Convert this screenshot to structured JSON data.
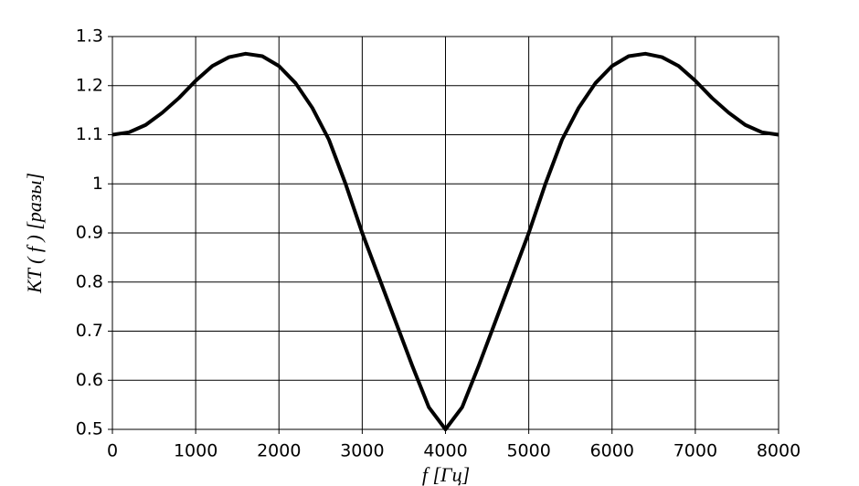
{
  "chart_data": {
    "type": "line",
    "x_label": "f [Гц]",
    "y_label": "KT ( f ) [разы]",
    "x": [
      0,
      200,
      400,
      600,
      800,
      1000,
      1200,
      1400,
      1600,
      1800,
      2000,
      2200,
      2400,
      2600,
      2800,
      3000,
      3200,
      3400,
      3600,
      3800,
      4000,
      4200,
      4400,
      4600,
      4800,
      5000,
      5200,
      5400,
      5600,
      5800,
      6000,
      6200,
      6400,
      6600,
      6800,
      7000,
      7200,
      7400,
      7600,
      7800,
      8000
    ],
    "series": [
      {
        "color": "#000000",
        "values": [
          1.1,
          1.105,
          1.12,
          1.145,
          1.175,
          1.21,
          1.24,
          1.258,
          1.265,
          1.26,
          1.24,
          1.205,
          1.155,
          1.09,
          1.0,
          0.9,
          0.81,
          0.72,
          0.63,
          0.545,
          0.5,
          0.545,
          0.63,
          0.72,
          0.81,
          0.9,
          1.0,
          1.09,
          1.155,
          1.205,
          1.24,
          1.26,
          1.265,
          1.258,
          1.24,
          1.21,
          1.175,
          1.145,
          1.12,
          1.105,
          1.1
        ]
      }
    ],
    "xlim": [
      0,
      8000
    ],
    "xticks": [
      0,
      1000,
      2000,
      3000,
      4000,
      5000,
      6000,
      7000,
      8000
    ],
    "ylim": [
      0.5,
      1.3
    ],
    "yticks": [
      0.5,
      0.6,
      0.7,
      0.8,
      0.9,
      1,
      1.1,
      1.2,
      1.3
    ],
    "grid": true
  }
}
